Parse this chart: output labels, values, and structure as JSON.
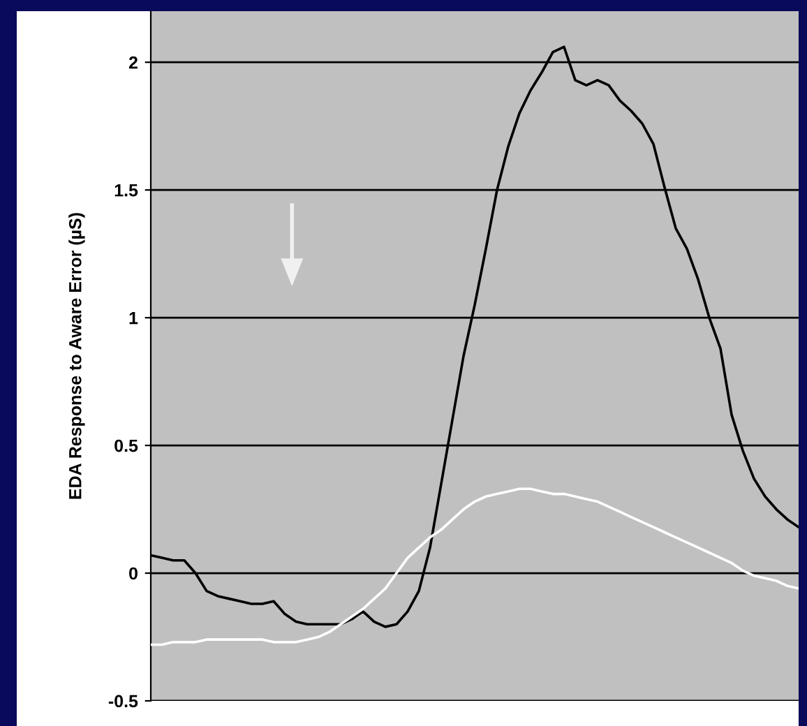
{
  "chart_data": {
    "type": "line",
    "ylabel": "EDA Response to Aware Error (µS)",
    "categories": [
      null,
      null,
      null,
      null,
      null,
      null,
      null,
      null,
      null,
      null,
      null,
      null,
      null,
      null,
      null,
      null,
      null,
      null,
      null,
      null,
      null,
      null,
      null,
      null,
      null,
      null,
      null,
      null,
      null,
      null,
      null,
      null,
      null,
      null,
      null,
      null,
      null,
      null,
      null,
      null,
      null,
      null,
      null,
      null,
      null,
      null,
      null,
      null,
      null,
      null,
      null,
      null,
      null,
      null,
      null,
      null,
      null,
      null,
      null
    ],
    "series": [
      {
        "color": "#000000",
        "values": [
          0.07,
          0.06,
          0.05,
          0.05,
          0.0,
          -0.07,
          -0.09,
          -0.1,
          -0.11,
          -0.12,
          -0.12,
          -0.11,
          -0.16,
          -0.19,
          -0.2,
          -0.2,
          -0.2,
          -0.2,
          -0.18,
          -0.15,
          -0.19,
          -0.21,
          -0.2,
          -0.15,
          -0.07,
          0.1,
          0.35,
          0.6,
          0.85,
          1.05,
          1.27,
          1.5,
          1.67,
          1.8,
          1.89,
          1.96,
          2.04,
          2.06,
          1.93,
          1.91,
          1.93,
          1.91,
          1.85,
          1.81,
          1.76,
          1.68,
          1.51,
          1.35,
          1.27,
          1.15,
          1.0,
          0.88,
          0.62,
          0.48,
          0.37,
          0.3,
          0.25,
          0.21,
          0.18
        ]
      },
      {
        "color": "#ffffff",
        "values": [
          -0.28,
          -0.28,
          -0.27,
          -0.27,
          -0.27,
          -0.26,
          -0.26,
          -0.26,
          -0.26,
          -0.26,
          -0.26,
          -0.27,
          -0.27,
          -0.27,
          -0.26,
          -0.25,
          -0.23,
          -0.2,
          -0.17,
          -0.14,
          -0.1,
          -0.06,
          0.0,
          0.06,
          0.1,
          0.14,
          0.17,
          0.21,
          0.25,
          0.28,
          0.3,
          0.31,
          0.32,
          0.33,
          0.33,
          0.32,
          0.31,
          0.31,
          0.3,
          0.29,
          0.28,
          0.26,
          0.24,
          0.22,
          0.2,
          0.18,
          0.16,
          0.14,
          0.12,
          0.1,
          0.08,
          0.06,
          0.04,
          0.01,
          -0.01,
          -0.02,
          -0.03,
          -0.05,
          -0.06
        ]
      }
    ],
    "ylim": [
      -0.5,
      2.2
    ],
    "yticks": [
      {
        "value": -0.5,
        "label": "-0.5"
      },
      0,
      0.5,
      1,
      1.5,
      2
    ],
    "grid": "y"
  }
}
